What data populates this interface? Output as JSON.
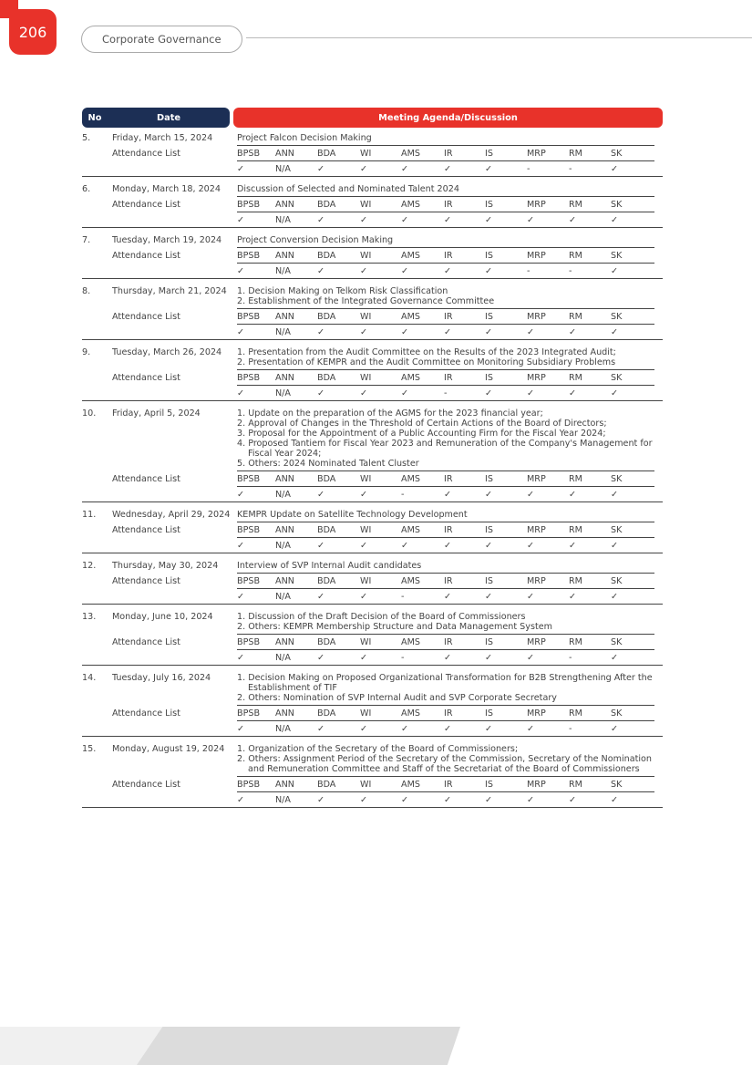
{
  "page_number": "206",
  "section": "Corporate Governance",
  "table": {
    "headers": [
      "No",
      "Date",
      "Meeting Agenda/Discussion"
    ],
    "rows": [
      {
        "no": "5.",
        "date": "Friday, March 15, 2024",
        "agenda": [
          "Project Falcon Decision Making"
        ],
        "attendance": {
          "label": "Attendance List",
          "members": [
            "BPSB",
            "ANN",
            "BDA",
            "WI",
            "AMS",
            "IR",
            "IS",
            "MRP",
            "RM",
            "SK"
          ],
          "marks": [
            "✓",
            "N/A",
            "✓",
            "✓",
            "✓",
            "✓",
            "✓",
            "-",
            "-",
            "✓"
          ]
        }
      },
      {
        "no": "6.",
        "date": "Monday, March 18, 2024",
        "agenda": [
          "Discussion of Selected and Nominated Talent 2024"
        ],
        "attendance": {
          "label": "Attendance List",
          "members": [
            "BPSB",
            "ANN",
            "BDA",
            "WI",
            "AMS",
            "IR",
            "IS",
            "MRP",
            "RM",
            "SK"
          ],
          "marks": [
            "✓",
            "N/A",
            "✓",
            "✓",
            "✓",
            "✓",
            "✓",
            "✓",
            "✓",
            "✓"
          ]
        }
      },
      {
        "no": "7.",
        "date": "Tuesday, March 19, 2024",
        "agenda": [
          "Project Conversion Decision Making"
        ],
        "attendance": {
          "label": "Attendance List",
          "members": [
            "BPSB",
            "ANN",
            "BDA",
            "WI",
            "AMS",
            "IR",
            "IS",
            "MRP",
            "RM",
            "SK"
          ],
          "marks": [
            "✓",
            "N/A",
            "✓",
            "✓",
            "✓",
            "✓",
            "✓",
            "-",
            "-",
            "✓"
          ]
        }
      },
      {
        "no": "8.",
        "date": "Thursday, March 21, 2024",
        "agenda": [
          "1. Decision Making on Telkom Risk Classification",
          "2. Establishment of the Integrated Governance Committee"
        ],
        "attendance": {
          "label": "Attendance List",
          "members": [
            "BPSB",
            "ANN",
            "BDA",
            "WI",
            "AMS",
            "IR",
            "IS",
            "MRP",
            "RM",
            "SK"
          ],
          "marks": [
            "✓",
            "N/A",
            "✓",
            "✓",
            "✓",
            "✓",
            "✓",
            "✓",
            "✓",
            "✓"
          ]
        }
      },
      {
        "no": "9.",
        "date": "Tuesday, March 26, 2024",
        "agenda": [
          "1. Presentation from the Audit Committee on the Results of the 2023 Integrated Audit;",
          "2. Presentation of KEMPR and the Audit Committee on Monitoring Subsidiary Problems"
        ],
        "attendance": {
          "label": "Attendance List",
          "members": [
            "BPSB",
            "ANN",
            "BDA",
            "WI",
            "AMS",
            "IR",
            "IS",
            "MRP",
            "RM",
            "SK"
          ],
          "marks": [
            "✓",
            "N/A",
            "✓",
            "✓",
            "✓",
            "-",
            "✓",
            "✓",
            "✓",
            "✓"
          ]
        }
      },
      {
        "no": "10.",
        "date": "Friday, April 5, 2024",
        "agenda": [
          "1. Update on the preparation of the AGMS for the 2023 financial year;",
          "2. Approval of Changes in the Threshold of Certain Actions of the Board of Directors;",
          "3. Proposal for the Appointment of a Public Accounting Firm for the Fiscal Year 2024;",
          "4. Proposed Tantiem for Fiscal Year 2023 and Remuneration of the Company's Management for Fiscal Year 2024;",
          "5. Others: 2024 Nominated Talent Cluster"
        ],
        "attendance": {
          "label": "Attendance List",
          "members": [
            "BPSB",
            "ANN",
            "BDA",
            "WI",
            "AMS",
            "IR",
            "IS",
            "MRP",
            "RM",
            "SK"
          ],
          "marks": [
            "✓",
            "N/A",
            "✓",
            "✓",
            "-",
            "✓",
            "✓",
            "✓",
            "✓",
            "✓"
          ]
        }
      },
      {
        "no": "11.",
        "date": "Wednesday, April 29, 2024",
        "agenda": [
          "KEMPR Update on Satellite Technology Development"
        ],
        "attendance": {
          "label": "Attendance List",
          "members": [
            "BPSB",
            "ANN",
            "BDA",
            "WI",
            "AMS",
            "IR",
            "IS",
            "MRP",
            "RM",
            "SK"
          ],
          "marks": [
            "✓",
            "N/A",
            "✓",
            "✓",
            "✓",
            "✓",
            "✓",
            "✓",
            "✓",
            "✓"
          ]
        }
      },
      {
        "no": "12.",
        "date": "Thursday, May 30, 2024",
        "agenda": [
          "Interview of SVP Internal Audit candidates"
        ],
        "attendance": {
          "label": "Attendance List",
          "members": [
            "BPSB",
            "ANN",
            "BDA",
            "WI",
            "AMS",
            "IR",
            "IS",
            "MRP",
            "RM",
            "SK"
          ],
          "marks": [
            "✓",
            "N/A",
            "✓",
            "✓",
            "-",
            "✓",
            "✓",
            "✓",
            "✓",
            "✓"
          ]
        }
      },
      {
        "no": "13.",
        "date": "Monday, June 10, 2024",
        "agenda": [
          "1. Discussion of the Draft Decision of the Board of Commissioners",
          "2. Others: KEMPR Membership Structure and Data Management System"
        ],
        "attendance": {
          "label": "Attendance List",
          "members": [
            "BPSB",
            "ANN",
            "BDA",
            "WI",
            "AMS",
            "IR",
            "IS",
            "MRP",
            "RM",
            "SK"
          ],
          "marks": [
            "✓",
            "N/A",
            "✓",
            "✓",
            "-",
            "✓",
            "✓",
            "✓",
            "-",
            "✓"
          ]
        }
      },
      {
        "no": "14.",
        "date": "Tuesday, July 16, 2024",
        "agenda": [
          "1. Decision Making on Proposed Organizational Transformation for B2B Strengthening After the Establishment of TIF",
          "2. Others: Nomination of SVP Internal Audit and SVP Corporate Secretary"
        ],
        "attendance": {
          "label": "Attendance List",
          "members": [
            "BPSB",
            "ANN",
            "BDA",
            "WI",
            "AMS",
            "IR",
            "IS",
            "MRP",
            "RM",
            "SK"
          ],
          "marks": [
            "✓",
            "N/A",
            "✓",
            "✓",
            "✓",
            "✓",
            "✓",
            "✓",
            "-",
            "✓"
          ]
        }
      },
      {
        "no": "15.",
        "date": "Monday, August 19, 2024",
        "agenda": [
          "1. Organization of the Secretary of the Board of Commissioners;",
          "2. Others: Assignment Period of the Secretary of the Commission, Secretary of the Nomination and Remuneration Committee and Staff of the Secretariat of the Board of Commissioners"
        ],
        "attendance": {
          "label": "Attendance List",
          "members": [
            "BPSB",
            "ANN",
            "BDA",
            "WI",
            "AMS",
            "IR",
            "IS",
            "MRP",
            "RM",
            "SK"
          ],
          "marks": [
            "✓",
            "N/A",
            "✓",
            "✓",
            "✓",
            "✓",
            "✓",
            "✓",
            "✓",
            "✓"
          ]
        }
      }
    ]
  }
}
